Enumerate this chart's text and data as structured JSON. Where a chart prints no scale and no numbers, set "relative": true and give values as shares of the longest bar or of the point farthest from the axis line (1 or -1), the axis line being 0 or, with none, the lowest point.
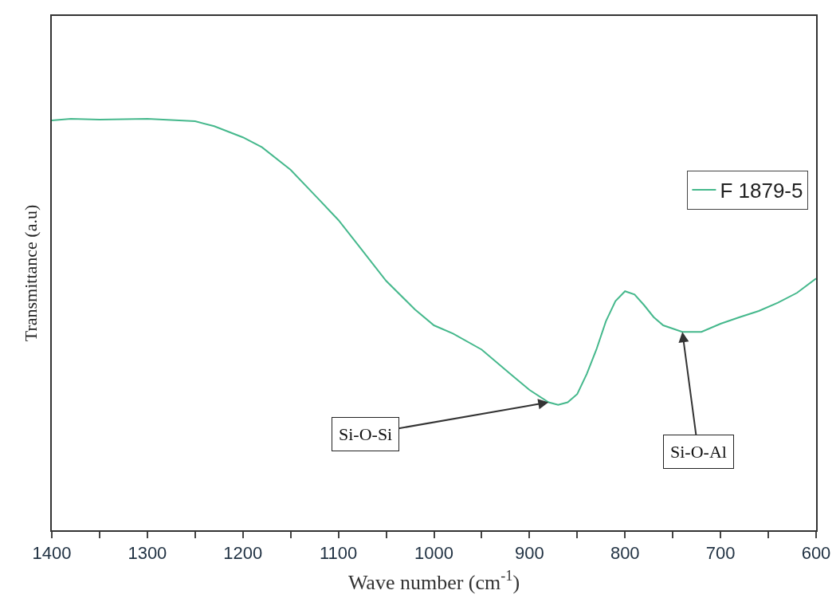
{
  "chart_data": {
    "type": "line",
    "relative": true,
    "xlabel": "Wave number (cm$^{-1}$)",
    "ylabel": "Transmittance (a.u)",
    "xlim": [
      1400,
      600
    ],
    "xticks": [
      1400,
      {
        "value": 1350,
        "label": null
      },
      1300,
      {
        "value": 1250,
        "label": null
      },
      1200,
      {
        "value": 1150,
        "label": null
      },
      1100,
      {
        "value": 1050,
        "label": null
      },
      1000,
      {
        "value": 950,
        "label": null
      },
      900,
      {
        "value": 850,
        "label": null
      },
      800,
      {
        "value": 750,
        "label": null
      },
      700,
      {
        "value": 650,
        "label": null
      },
      600
    ],
    "x": [
      1400,
      1380,
      1350,
      1300,
      1250,
      1230,
      1200,
      1180,
      1150,
      1120,
      1100,
      1080,
      1050,
      1020,
      1000,
      980,
      950,
      920,
      900,
      880,
      870,
      860,
      850,
      840,
      830,
      820,
      810,
      800,
      790,
      780,
      770,
      760,
      740,
      720,
      700,
      680,
      660,
      640,
      620,
      600
    ],
    "series": [
      {
        "name": "F 1879-5",
        "color": "#45b88c",
        "values": [
          0.996,
          1.0,
          0.998,
          1.0,
          0.994,
          0.982,
          0.955,
          0.931,
          0.876,
          0.803,
          0.754,
          0.695,
          0.606,
          0.537,
          0.498,
          0.478,
          0.439,
          0.38,
          0.341,
          0.311,
          0.305,
          0.311,
          0.331,
          0.38,
          0.439,
          0.508,
          0.557,
          0.581,
          0.573,
          0.547,
          0.518,
          0.498,
          0.482,
          0.482,
          0.502,
          0.518,
          0.533,
          0.553,
          0.577,
          0.612
        ]
      }
    ],
    "annotations": [
      {
        "text": "Si-O-Si",
        "x": 880,
        "y": 0.311
      },
      {
        "text": "Si-O-Al",
        "x": 740,
        "y": 0.482
      }
    ],
    "legend": "top right",
    "marker": "none",
    "line_style": "solid"
  }
}
